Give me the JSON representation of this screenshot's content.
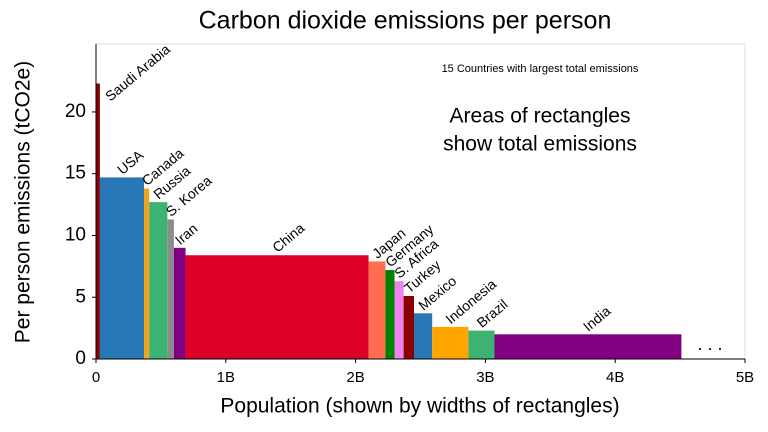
{
  "chart_data": {
    "type": "variwide-bar",
    "title": "Carbon dioxide emissions per person",
    "subtitle": "15 Countries with largest total emissions",
    "annotation": [
      "Areas of rectangles",
      "show total emissions"
    ],
    "ellipsis": ". . .",
    "x_label": "Population (shown by widths of rectangles)",
    "y_label": "Per person emissions (tCO2e)",
    "xlim": [
      0,
      5
    ],
    "ylim": [
      0,
      25.5
    ],
    "xticks": [
      0,
      {
        "value": 1,
        "label": "1B"
      },
      {
        "value": 2,
        "label": "2B"
      },
      {
        "value": 3,
        "label": "3B"
      },
      {
        "value": 4,
        "label": "4B"
      },
      {
        "value": 5,
        "label": "5B"
      }
    ],
    "yticks": [
      0,
      5,
      10,
      15,
      20
    ],
    "series": [
      {
        "name": "Saudi Arabia",
        "color": "#8b0000",
        "x0": 0,
        "x1": 0.03,
        "values": [
          22.3
        ]
      },
      {
        "name": "USA",
        "color": "#2878b8",
        "x0": 0.03,
        "x1": 0.37,
        "values": [
          14.7
        ]
      },
      {
        "name": "Canada",
        "color": "#f5a21b",
        "x0": 0.37,
        "x1": 0.41,
        "values": [
          13.8
        ]
      },
      {
        "name": "Russia",
        "color": "#3cb371",
        "x0": 0.41,
        "x1": 0.55,
        "values": [
          12.7
        ]
      },
      {
        "name": "S. Korea",
        "color": "#8c8c8c",
        "x0": 0.55,
        "x1": 0.6,
        "values": [
          11.3
        ]
      },
      {
        "name": "Iran",
        "color": "#800080",
        "x0": 0.6,
        "x1": 0.69,
        "values": [
          9.0
        ]
      },
      {
        "name": "China",
        "color": "#dc0028",
        "x0": 0.69,
        "x1": 2.1,
        "values": [
          8.4
        ]
      },
      {
        "name": "Japan",
        "color": "#ff6f4f",
        "x0": 2.1,
        "x1": 2.23,
        "values": [
          7.9
        ]
      },
      {
        "name": "Germany",
        "color": "#008000",
        "x0": 2.23,
        "x1": 2.3,
        "values": [
          7.2
        ]
      },
      {
        "name": "S. Africa",
        "color": "#ee82ee",
        "x0": 2.3,
        "x1": 2.37,
        "values": [
          6.3
        ]
      },
      {
        "name": "Turkey",
        "color": "#8b0000",
        "x0": 2.37,
        "x1": 2.45,
        "values": [
          5.1
        ]
      },
      {
        "name": "Mexico",
        "color": "#2878b8",
        "x0": 2.45,
        "x1": 2.59,
        "values": [
          3.7
        ]
      },
      {
        "name": "Indonesia",
        "color": "#ffa500",
        "x0": 2.59,
        "x1": 2.87,
        "values": [
          2.6
        ]
      },
      {
        "name": "Brazil",
        "color": "#3cb371",
        "x0": 2.87,
        "x1": 3.07,
        "values": [
          2.3
        ]
      },
      {
        "name": "India",
        "color": "#800080",
        "x0": 3.07,
        "x1": 4.51,
        "values": [
          2.0
        ]
      }
    ]
  }
}
